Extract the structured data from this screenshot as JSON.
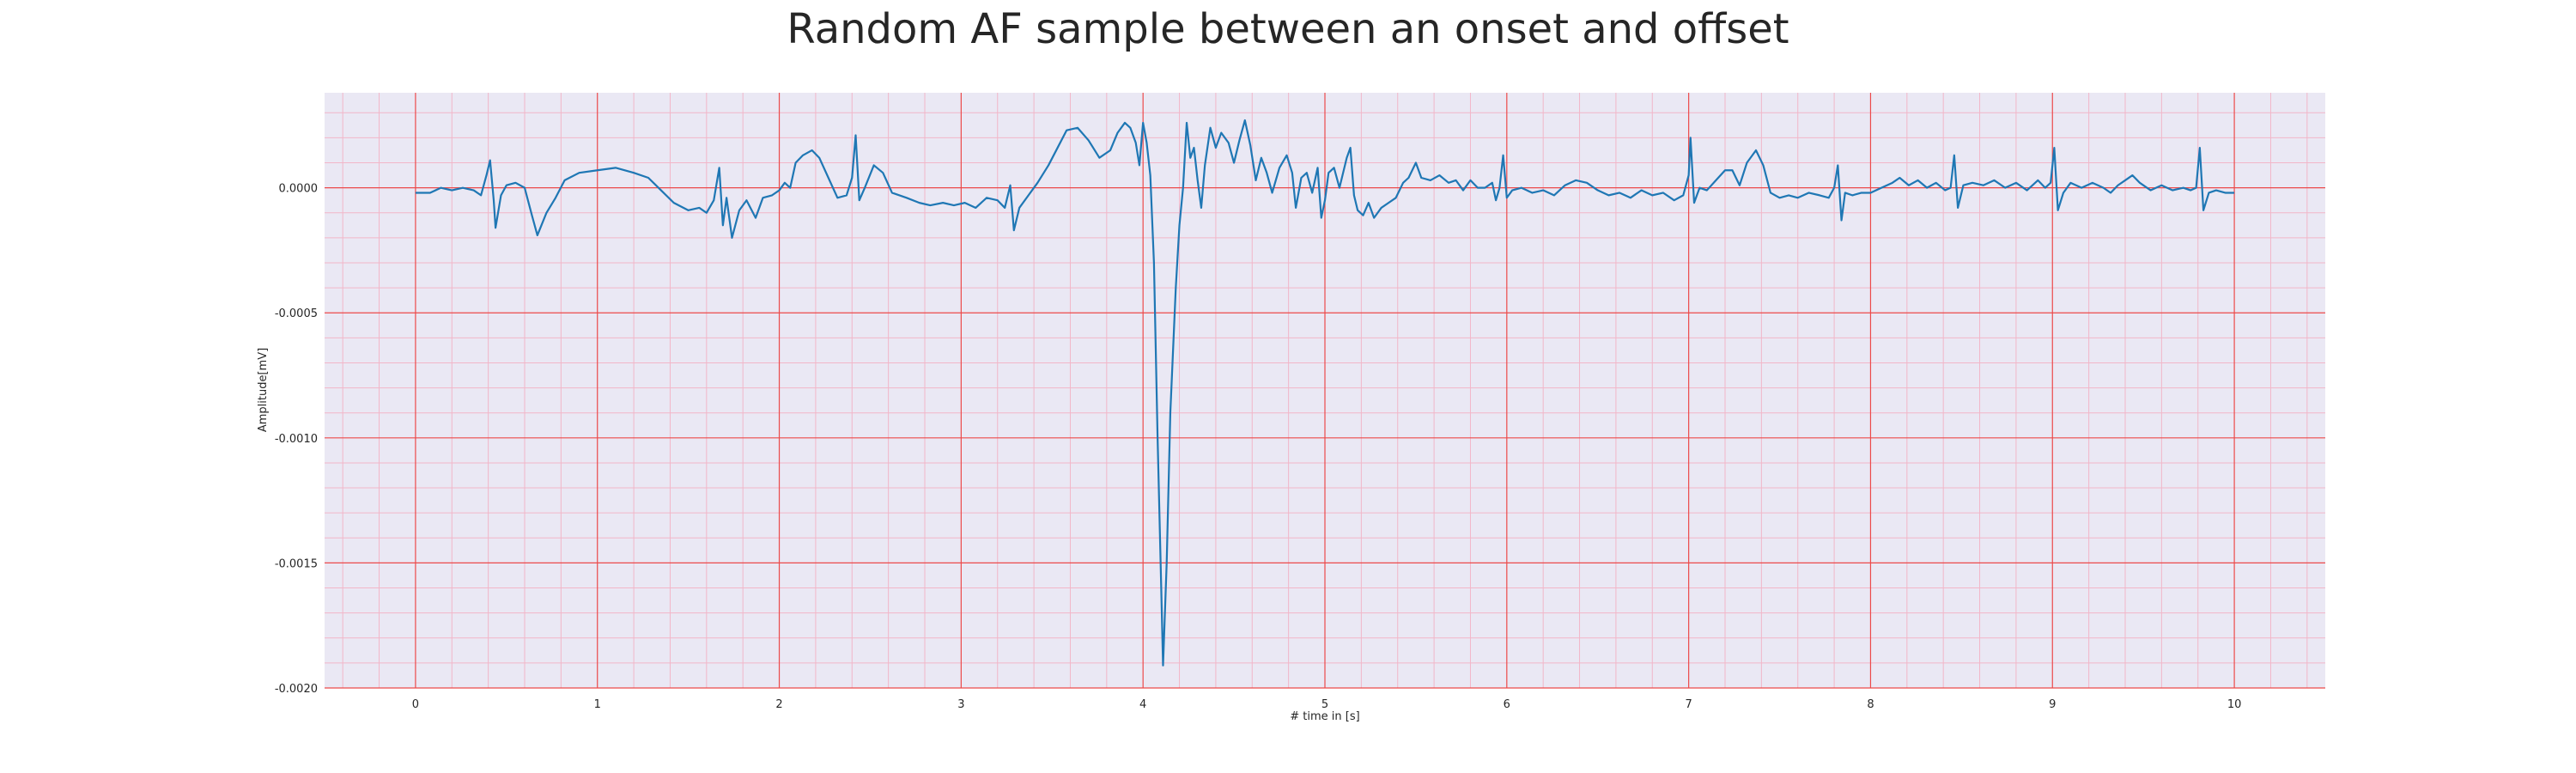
{
  "chart_data": {
    "type": "line",
    "title": "Random AF sample between an onset and offset",
    "xlabel": "# time in [s]",
    "ylabel": "Amplitude[mV]",
    "xlim": [
      -0.5,
      10.5
    ],
    "ylim": [
      -0.002,
      0.00038
    ],
    "xticks": [
      0,
      1,
      2,
      3,
      4,
      5,
      6,
      7,
      8,
      9,
      10
    ],
    "xtick_labels": [
      "0",
      "1",
      "2",
      "3",
      "4",
      "5",
      "6",
      "7",
      "8",
      "9",
      "10"
    ],
    "yticks": [
      0.0,
      -0.0005,
      -0.001,
      -0.0015,
      -0.002
    ],
    "ytick_labels": [
      "0.0000",
      "-0.0005",
      "-0.0010",
      "-0.0015",
      "-0.0020"
    ],
    "grid": true,
    "minor_grid": true,
    "series": [
      {
        "color": "#1f77b4",
        "points": [
          [
            0.0,
            -2e-05
          ],
          [
            0.08,
            -2e-05
          ],
          [
            0.14,
            0.0
          ],
          [
            0.2,
            -1e-05
          ],
          [
            0.26,
            0.0
          ],
          [
            0.32,
            -1e-05
          ],
          [
            0.36,
            -3e-05
          ],
          [
            0.39,
            5e-05
          ],
          [
            0.41,
            0.00011
          ],
          [
            0.43,
            -5e-05
          ],
          [
            0.44,
            -0.00016
          ],
          [
            0.47,
            -3e-05
          ],
          [
            0.5,
            1e-05
          ],
          [
            0.55,
            2e-05
          ],
          [
            0.6,
            0.0
          ],
          [
            0.64,
            -0.00011
          ],
          [
            0.67,
            -0.00019
          ],
          [
            0.72,
            -0.0001
          ],
          [
            0.77,
            -4e-05
          ],
          [
            0.82,
            3e-05
          ],
          [
            0.9,
            6e-05
          ],
          [
            1.0,
            7e-05
          ],
          [
            1.1,
            8e-05
          ],
          [
            1.2,
            6e-05
          ],
          [
            1.28,
            4e-05
          ],
          [
            1.35,
            -1e-05
          ],
          [
            1.42,
            -6e-05
          ],
          [
            1.5,
            -9e-05
          ],
          [
            1.56,
            -8e-05
          ],
          [
            1.6,
            -0.0001
          ],
          [
            1.64,
            -5e-05
          ],
          [
            1.67,
            8e-05
          ],
          [
            1.69,
            -0.00015
          ],
          [
            1.71,
            -4e-05
          ],
          [
            1.74,
            -0.0002
          ],
          [
            1.78,
            -9e-05
          ],
          [
            1.82,
            -5e-05
          ],
          [
            1.87,
            -0.00012
          ],
          [
            1.91,
            -4e-05
          ],
          [
            1.96,
            -3e-05
          ],
          [
            2.0,
            -1e-05
          ],
          [
            2.03,
            2e-05
          ],
          [
            2.06,
            0.0
          ],
          [
            2.09,
            0.0001
          ],
          [
            2.13,
            0.00013
          ],
          [
            2.18,
            0.00015
          ],
          [
            2.22,
            0.00012
          ],
          [
            2.27,
            4e-05
          ],
          [
            2.32,
            -4e-05
          ],
          [
            2.37,
            -3e-05
          ],
          [
            2.4,
            4e-05
          ],
          [
            2.42,
            0.00021
          ],
          [
            2.44,
            -5e-05
          ],
          [
            2.47,
            0.0
          ],
          [
            2.52,
            9e-05
          ],
          [
            2.57,
            6e-05
          ],
          [
            2.62,
            -2e-05
          ],
          [
            2.7,
            -4e-05
          ],
          [
            2.77,
            -6e-05
          ],
          [
            2.83,
            -7e-05
          ],
          [
            2.9,
            -6e-05
          ],
          [
            2.96,
            -7e-05
          ],
          [
            3.02,
            -6e-05
          ],
          [
            3.08,
            -8e-05
          ],
          [
            3.14,
            -4e-05
          ],
          [
            3.2,
            -5e-05
          ],
          [
            3.24,
            -8e-05
          ],
          [
            3.27,
            1e-05
          ],
          [
            3.29,
            -0.00017
          ],
          [
            3.32,
            -8e-05
          ],
          [
            3.37,
            -3e-05
          ],
          [
            3.42,
            2e-05
          ],
          [
            3.48,
            9e-05
          ],
          [
            3.53,
            0.00016
          ],
          [
            3.58,
            0.00023
          ],
          [
            3.64,
            0.00024
          ],
          [
            3.7,
            0.00019
          ],
          [
            3.76,
            0.00012
          ],
          [
            3.82,
            0.00015
          ],
          [
            3.86,
            0.00022
          ],
          [
            3.9,
            0.00026
          ],
          [
            3.93,
            0.00024
          ],
          [
            3.96,
            0.00018
          ],
          [
            3.98,
            9e-05
          ],
          [
            4.0,
            0.00026
          ],
          [
            4.02,
            0.00018
          ],
          [
            4.04,
            5e-05
          ],
          [
            4.06,
            -0.0003
          ],
          [
            4.08,
            -0.001
          ],
          [
            4.1,
            -0.0016
          ],
          [
            4.11,
            -0.00191
          ],
          [
            4.13,
            -0.0015
          ],
          [
            4.15,
            -0.0009
          ],
          [
            4.18,
            -0.0004
          ],
          [
            4.2,
            -0.00015
          ],
          [
            4.22,
            0.0
          ],
          [
            4.24,
            0.00026
          ],
          [
            4.26,
            0.00012
          ],
          [
            4.28,
            0.00016
          ],
          [
            4.3,
            3e-05
          ],
          [
            4.32,
            -8e-05
          ],
          [
            4.34,
            9e-05
          ],
          [
            4.37,
            0.00024
          ],
          [
            4.4,
            0.00016
          ],
          [
            4.43,
            0.00022
          ],
          [
            4.47,
            0.00018
          ],
          [
            4.5,
            0.0001
          ],
          [
            4.53,
            0.00019
          ],
          [
            4.56,
            0.00027
          ],
          [
            4.59,
            0.00017
          ],
          [
            4.62,
            3e-05
          ],
          [
            4.65,
            0.00012
          ],
          [
            4.68,
            6e-05
          ],
          [
            4.71,
            -2e-05
          ],
          [
            4.75,
            8e-05
          ],
          [
            4.79,
            0.00013
          ],
          [
            4.82,
            6e-05
          ],
          [
            4.84,
            -8e-05
          ],
          [
            4.87,
            4e-05
          ],
          [
            4.9,
            6e-05
          ],
          [
            4.93,
            -2e-05
          ],
          [
            4.96,
            8e-05
          ],
          [
            4.98,
            -0.00012
          ],
          [
            5.0,
            -5e-05
          ],
          [
            5.02,
            6e-05
          ],
          [
            5.05,
            8e-05
          ],
          [
            5.08,
            0.0
          ],
          [
            5.12,
            0.00012
          ],
          [
            5.14,
            0.00016
          ],
          [
            5.16,
            -3e-05
          ],
          [
            5.18,
            -9e-05
          ],
          [
            5.21,
            -0.00011
          ],
          [
            5.24,
            -6e-05
          ],
          [
            5.27,
            -0.00012
          ],
          [
            5.31,
            -8e-05
          ],
          [
            5.35,
            -6e-05
          ],
          [
            5.39,
            -4e-05
          ],
          [
            5.43,
            2e-05
          ],
          [
            5.46,
            4e-05
          ],
          [
            5.5,
            0.0001
          ],
          [
            5.53,
            4e-05
          ],
          [
            5.58,
            3e-05
          ],
          [
            5.63,
            5e-05
          ],
          [
            5.68,
            2e-05
          ],
          [
            5.72,
            3e-05
          ],
          [
            5.76,
            -1e-05
          ],
          [
            5.8,
            3e-05
          ],
          [
            5.84,
            0.0
          ],
          [
            5.88,
            0.0
          ],
          [
            5.92,
            2e-05
          ],
          [
            5.94,
            -5e-05
          ],
          [
            5.96,
            0.0
          ],
          [
            5.98,
            0.00013
          ],
          [
            6.0,
            -4e-05
          ],
          [
            6.03,
            -1e-05
          ],
          [
            6.08,
            0.0
          ],
          [
            6.14,
            -2e-05
          ],
          [
            6.2,
            -1e-05
          ],
          [
            6.26,
            -3e-05
          ],
          [
            6.32,
            1e-05
          ],
          [
            6.38,
            3e-05
          ],
          [
            6.44,
            2e-05
          ],
          [
            6.5,
            -1e-05
          ],
          [
            6.56,
            -3e-05
          ],
          [
            6.62,
            -2e-05
          ],
          [
            6.68,
            -4e-05
          ],
          [
            6.74,
            -1e-05
          ],
          [
            6.8,
            -3e-05
          ],
          [
            6.86,
            -2e-05
          ],
          [
            6.92,
            -5e-05
          ],
          [
            6.97,
            -3e-05
          ],
          [
            7.0,
            5e-05
          ],
          [
            7.01,
            0.0002
          ],
          [
            7.03,
            -6e-05
          ],
          [
            7.06,
            0.0
          ],
          [
            7.1,
            -1e-05
          ],
          [
            7.15,
            3e-05
          ],
          [
            7.2,
            7e-05
          ],
          [
            7.24,
            7e-05
          ],
          [
            7.28,
            1e-05
          ],
          [
            7.32,
            0.0001
          ],
          [
            7.37,
            0.00015
          ],
          [
            7.41,
            9e-05
          ],
          [
            7.45,
            -2e-05
          ],
          [
            7.5,
            -4e-05
          ],
          [
            7.55,
            -3e-05
          ],
          [
            7.6,
            -4e-05
          ],
          [
            7.66,
            -2e-05
          ],
          [
            7.72,
            -3e-05
          ],
          [
            7.77,
            -4e-05
          ],
          [
            7.8,
            0.0
          ],
          [
            7.82,
            9e-05
          ],
          [
            7.84,
            -0.00013
          ],
          [
            7.86,
            -2e-05
          ],
          [
            7.9,
            -3e-05
          ],
          [
            7.95,
            -2e-05
          ],
          [
            8.0,
            -2e-05
          ],
          [
            8.06,
            0.0
          ],
          [
            8.12,
            2e-05
          ],
          [
            8.16,
            4e-05
          ],
          [
            8.21,
            1e-05
          ],
          [
            8.26,
            3e-05
          ],
          [
            8.31,
            0.0
          ],
          [
            8.36,
            2e-05
          ],
          [
            8.41,
            -1e-05
          ],
          [
            8.44,
            0.0
          ],
          [
            8.46,
            0.00013
          ],
          [
            8.48,
            -8e-05
          ],
          [
            8.51,
            1e-05
          ],
          [
            8.56,
            2e-05
          ],
          [
            8.62,
            1e-05
          ],
          [
            8.68,
            3e-05
          ],
          [
            8.74,
            0.0
          ],
          [
            8.8,
            2e-05
          ],
          [
            8.86,
            -1e-05
          ],
          [
            8.92,
            3e-05
          ],
          [
            8.96,
            0.0
          ],
          [
            8.99,
            2e-05
          ],
          [
            9.01,
            0.00016
          ],
          [
            9.03,
            -9e-05
          ],
          [
            9.06,
            -2e-05
          ],
          [
            9.1,
            2e-05
          ],
          [
            9.16,
            0.0
          ],
          [
            9.22,
            2e-05
          ],
          [
            9.28,
            0.0
          ],
          [
            9.32,
            -2e-05
          ],
          [
            9.36,
            1e-05
          ],
          [
            9.4,
            3e-05
          ],
          [
            9.44,
            5e-05
          ],
          [
            9.48,
            2e-05
          ],
          [
            9.54,
            -1e-05
          ],
          [
            9.6,
            1e-05
          ],
          [
            9.66,
            -1e-05
          ],
          [
            9.72,
            0.0
          ],
          [
            9.76,
            -1e-05
          ],
          [
            9.79,
            0.0
          ],
          [
            9.81,
            0.00016
          ],
          [
            9.83,
            -9e-05
          ],
          [
            9.86,
            -2e-05
          ],
          [
            9.9,
            -1e-05
          ],
          [
            9.95,
            -2e-05
          ],
          [
            10.0,
            -2e-05
          ]
        ]
      }
    ]
  }
}
